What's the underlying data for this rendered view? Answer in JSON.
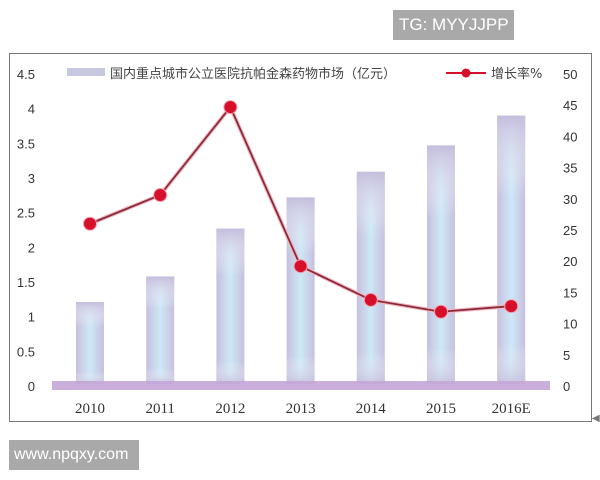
{
  "watermarks": {
    "top": "TG: MYYJJPP",
    "bottom": "www.npqxy.com"
  },
  "legend": {
    "bar_label": "国内重点城市公立医院抗帕金森药物市场（亿元）",
    "line_label": "增长率%"
  },
  "colors": {
    "bar_edge": "#c8c3e0",
    "bar_center": "#c9e6f5",
    "line": "#8a2a3a",
    "marker": "#d6102a",
    "floor": "#c4a6d6",
    "frame": "#777777"
  },
  "chart_data": {
    "type": "bar+line",
    "title": "",
    "categories": [
      "2010",
      "2011",
      "2012",
      "2013",
      "2014",
      "2015",
      "2016E"
    ],
    "series": [
      {
        "name": "国内重点城市公立医院抗帕金森药物市场（亿元）",
        "type": "bar",
        "axis": "left",
        "values": [
          1.21,
          1.58,
          2.27,
          2.72,
          3.09,
          3.47,
          3.9
        ]
      },
      {
        "name": "增长率%",
        "type": "line",
        "axis": "right",
        "values": [
          26.0,
          30.6,
          44.7,
          19.2,
          13.8,
          11.9,
          12.8
        ]
      }
    ],
    "left_axis": {
      "ylim": [
        0,
        4.5
      ],
      "ticks": [
        "0",
        "0.5",
        "1",
        "1.5",
        "2",
        "2.5",
        "3",
        "3.5",
        "4",
        "4.5"
      ]
    },
    "right_axis": {
      "ylim": [
        0,
        50
      ],
      "ticks": [
        "0",
        "5",
        "10",
        "15",
        "20",
        "25",
        "30",
        "35",
        "40",
        "45",
        "50"
      ]
    },
    "xlabel": "",
    "ylabel_left": "",
    "ylabel_right": "",
    "grid": false,
    "legend_position": "top"
  }
}
